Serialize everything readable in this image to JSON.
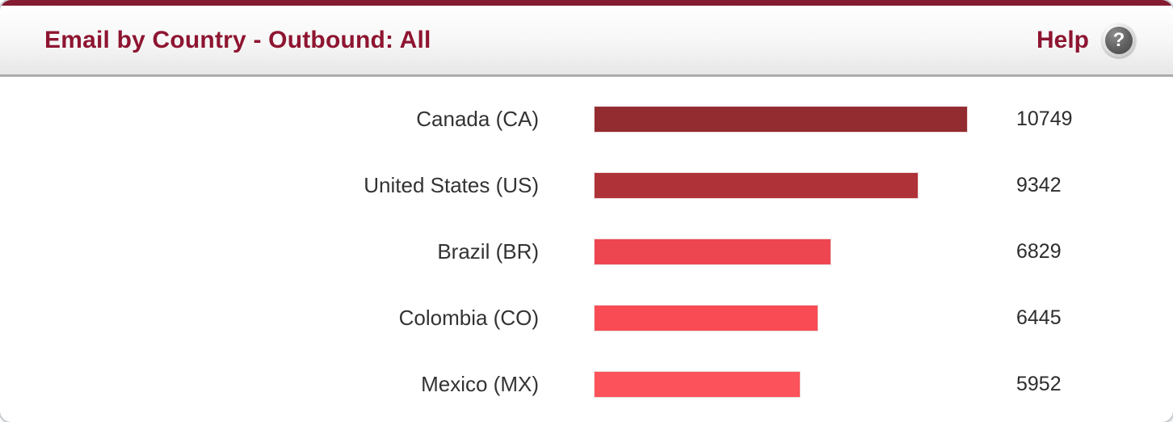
{
  "panel": {
    "title": "Email by Country - Outbound: All",
    "help_label": "Help",
    "help_icon_glyph": "?",
    "accent_color": "#8e1531",
    "top_strip_color": "#851c31"
  },
  "chart_data": {
    "type": "bar",
    "orientation": "horizontal",
    "title": "Email by Country - Outbound: All",
    "categories": [
      "Canada (CA)",
      "United States (US)",
      "Brazil (BR)",
      "Colombia (CO)",
      "Mexico (MX)"
    ],
    "values": [
      10749,
      9342,
      6829,
      6445,
      5952
    ],
    "value_labels": [
      "10749",
      "9342",
      "6829",
      "6445",
      "5952"
    ],
    "bar_colors": [
      "#932c30",
      "#af3238",
      "#ee4650",
      "#f84b54",
      "#fb525b"
    ],
    "xlim": [
      0,
      10749
    ],
    "grid": false,
    "legend": false,
    "xlabel": "",
    "ylabel": ""
  }
}
